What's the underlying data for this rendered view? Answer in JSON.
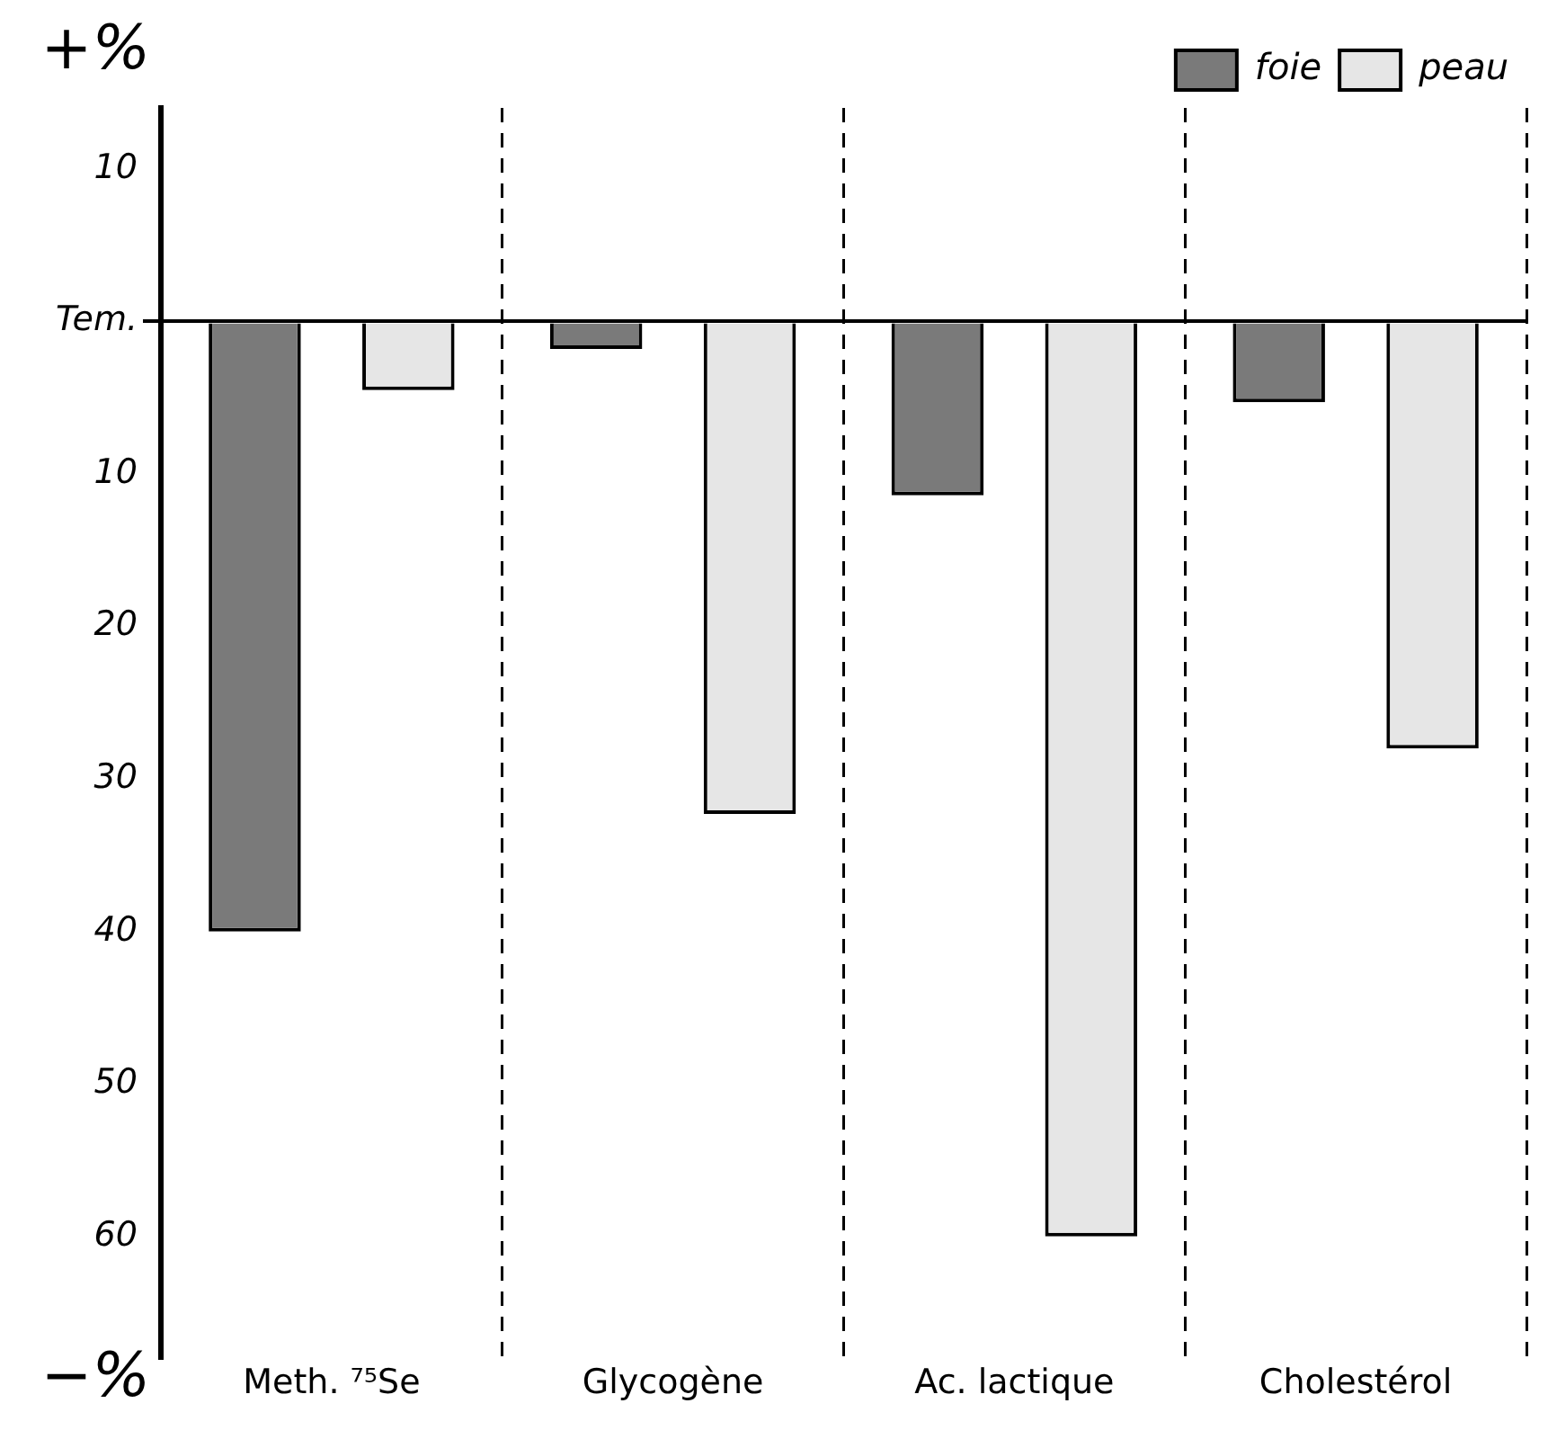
{
  "chart_data": {
    "type": "bar",
    "categories": [
      "Meth. ⁷⁵Se",
      "Glycogène",
      "Ac. lactique",
      "Cholestérol"
    ],
    "series": [
      {
        "name": "foie",
        "color": "#7a7a7a",
        "values": [
          -40,
          -1.8,
          -11.4,
          -5.3
        ]
      },
      {
        "name": "peau",
        "color": "#e6e6e6",
        "values": [
          -4.5,
          -32.3,
          -60,
          -28
        ]
      }
    ],
    "ylim": [
      -68,
      14
    ],
    "yticks": [
      {
        "value": 10,
        "label": "10"
      },
      {
        "value": 0,
        "label": "Tem."
      },
      {
        "value": -10,
        "label": "10"
      },
      {
        "value": -20,
        "label": "20"
      },
      {
        "value": -30,
        "label": "30"
      },
      {
        "value": -40,
        "label": "40"
      },
      {
        "value": -50,
        "label": "50"
      },
      {
        "value": -60,
        "label": "60"
      }
    ],
    "annotations": [
      "+%",
      "−%"
    ],
    "grid": "x",
    "legend": "top right"
  }
}
